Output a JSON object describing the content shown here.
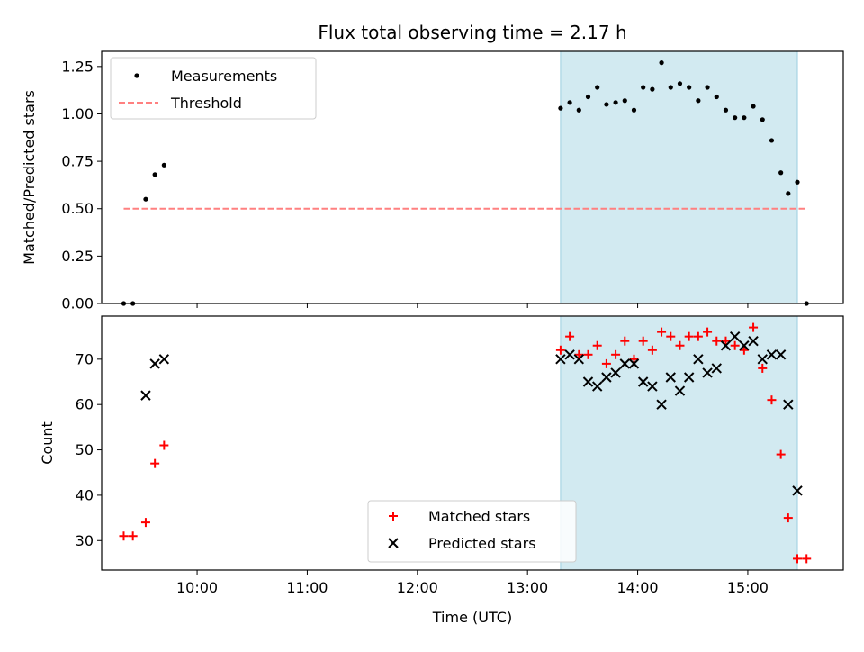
{
  "title": "Flux total observing time = 2.17 h",
  "chart_data": [
    {
      "type": "scatter",
      "ylabel": "Matched/Predicted stars",
      "xlabel": "",
      "ylim": [
        0,
        1.33
      ],
      "yticks": [
        0.0,
        0.25,
        0.5,
        0.75,
        1.0,
        1.25
      ],
      "ytick_labels": [
        "0.00",
        "0.25",
        "0.50",
        "0.75",
        "1.00",
        "1.25"
      ],
      "xlim": [
        "09:08",
        "15:52"
      ],
      "legend_placement": "top-left",
      "highlight_span": {
        "start": "13:18",
        "end": "15:27",
        "color": "#add8e6"
      },
      "threshold": {
        "name": "Threshold",
        "value": 0.5,
        "start": "09:20",
        "end": "15:32",
        "color": "#ff8080"
      },
      "measurements": {
        "name": "Measurements",
        "color": "#000000",
        "points": [
          [
            "09:20",
            0.0
          ],
          [
            "09:25",
            0.0
          ],
          [
            "09:32",
            0.55
          ],
          [
            "09:37",
            0.68
          ],
          [
            "09:42",
            0.73
          ],
          [
            "13:18",
            1.03
          ],
          [
            "13:23",
            1.06
          ],
          [
            "13:28",
            1.02
          ],
          [
            "13:33",
            1.09
          ],
          [
            "13:38",
            1.14
          ],
          [
            "13:43",
            1.05
          ],
          [
            "13:48",
            1.06
          ],
          [
            "13:53",
            1.07
          ],
          [
            "13:58",
            1.02
          ],
          [
            "14:03",
            1.14
          ],
          [
            "14:08",
            1.13
          ],
          [
            "14:13",
            1.27
          ],
          [
            "14:18",
            1.14
          ],
          [
            "14:23",
            1.16
          ],
          [
            "14:28",
            1.14
          ],
          [
            "14:33",
            1.07
          ],
          [
            "14:38",
            1.14
          ],
          [
            "14:43",
            1.09
          ],
          [
            "14:48",
            1.02
          ],
          [
            "14:53",
            0.98
          ],
          [
            "14:58",
            0.98
          ],
          [
            "15:03",
            1.04
          ],
          [
            "15:08",
            0.97
          ],
          [
            "15:13",
            0.86
          ],
          [
            "15:18",
            0.69
          ],
          [
            "15:22",
            0.58
          ],
          [
            "15:27",
            0.64
          ],
          [
            "15:32",
            0.0
          ]
        ]
      }
    },
    {
      "type": "scatter",
      "ylabel": "Count",
      "xlabel": "Time (UTC)",
      "ylim": [
        23.5,
        79.5
      ],
      "yticks": [
        30,
        40,
        50,
        60,
        70
      ],
      "ytick_labels": [
        "30",
        "40",
        "50",
        "60",
        "70"
      ],
      "xlim": [
        "09:08",
        "15:52"
      ],
      "xticks": [
        "10:00",
        "11:00",
        "12:00",
        "13:00",
        "14:00",
        "15:00"
      ],
      "legend_placement": "lower-center",
      "highlight_span": {
        "start": "13:18",
        "end": "15:27",
        "color": "#add8e6"
      },
      "series": [
        {
          "name": "Matched stars",
          "marker": "plus",
          "color": "#ff0000",
          "points": [
            [
              "09:20",
              31
            ],
            [
              "09:25",
              31
            ],
            [
              "09:32",
              34
            ],
            [
              "09:37",
              47
            ],
            [
              "09:42",
              51
            ],
            [
              "13:18",
              72
            ],
            [
              "13:23",
              75
            ],
            [
              "13:28",
              71
            ],
            [
              "13:33",
              71
            ],
            [
              "13:38",
              73
            ],
            [
              "13:43",
              69
            ],
            [
              "13:48",
              71
            ],
            [
              "13:53",
              74
            ],
            [
              "13:58",
              70
            ],
            [
              "14:03",
              74
            ],
            [
              "14:08",
              72
            ],
            [
              "14:13",
              76
            ],
            [
              "14:18",
              75
            ],
            [
              "14:23",
              73
            ],
            [
              "14:28",
              75
            ],
            [
              "14:33",
              75
            ],
            [
              "14:38",
              76
            ],
            [
              "14:43",
              74
            ],
            [
              "14:48",
              74
            ],
            [
              "14:53",
              73
            ],
            [
              "14:58",
              72
            ],
            [
              "15:03",
              77
            ],
            [
              "15:08",
              68
            ],
            [
              "15:13",
              61
            ],
            [
              "15:18",
              49
            ],
            [
              "15:22",
              35
            ],
            [
              "15:27",
              26
            ],
            [
              "15:32",
              26
            ]
          ]
        },
        {
          "name": "Predicted stars",
          "marker": "x",
          "color": "#000000",
          "points": [
            [
              "09:32",
              62
            ],
            [
              "09:37",
              69
            ],
            [
              "09:42",
              70
            ],
            [
              "13:18",
              70
            ],
            [
              "13:23",
              71
            ],
            [
              "13:28",
              70
            ],
            [
              "13:33",
              65
            ],
            [
              "13:38",
              64
            ],
            [
              "13:43",
              66
            ],
            [
              "13:48",
              67
            ],
            [
              "13:53",
              69
            ],
            [
              "13:58",
              69
            ],
            [
              "14:03",
              65
            ],
            [
              "14:08",
              64
            ],
            [
              "14:13",
              60
            ],
            [
              "14:18",
              66
            ],
            [
              "14:23",
              63
            ],
            [
              "14:28",
              66
            ],
            [
              "14:33",
              70
            ],
            [
              "14:38",
              67
            ],
            [
              "14:43",
              68
            ],
            [
              "14:48",
              73
            ],
            [
              "14:53",
              75
            ],
            [
              "14:58",
              73
            ],
            [
              "15:03",
              74
            ],
            [
              "15:08",
              70
            ],
            [
              "15:13",
              71
            ],
            [
              "15:18",
              71
            ],
            [
              "15:22",
              60
            ],
            [
              "15:27",
              41
            ]
          ]
        }
      ]
    }
  ]
}
